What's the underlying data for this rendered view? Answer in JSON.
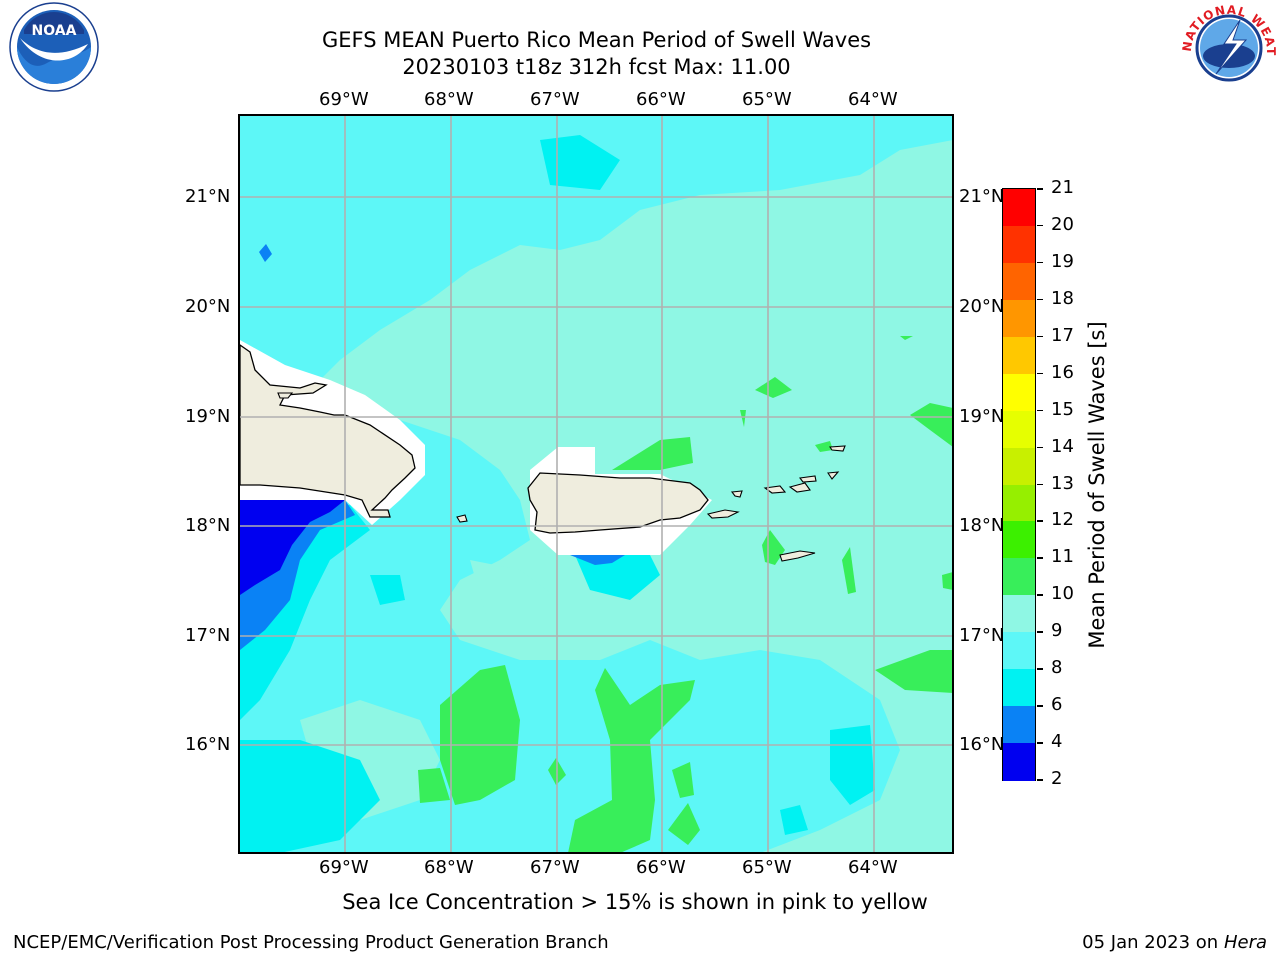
{
  "header": {
    "title_line1": "GEFS MEAN Puerto Rico Mean Period of Swell Waves",
    "title_line2": "20230103 t18z 312h fcst   Max: 11.00"
  },
  "logos": {
    "left": "noaa-logo",
    "right": "nws-logo"
  },
  "map": {
    "lon_labels": [
      "69°W",
      "68°W",
      "67°W",
      "66°W",
      "65°W",
      "64°W"
    ],
    "lat_labels": [
      "21°N",
      "20°N",
      "19°N",
      "18°N",
      "17°N",
      "16°N"
    ],
    "colors": {
      "land": "#efedde",
      "sea_8_9": "#5df7f7",
      "sea_9_10": "#8ff7e4",
      "sea_6_8": "#00f2f2",
      "sea_10_11": "#38ee5a",
      "sea_4_6": "#0a82f5",
      "sea_2_4": "#0000f0",
      "grid": "#b0b0b0"
    }
  },
  "colorbar": {
    "label": "Mean Period of Swell Waves [s]",
    "ticks": [
      "21",
      "20",
      "19",
      "18",
      "17",
      "16",
      "15",
      "14",
      "13",
      "12",
      "11",
      "10",
      "9",
      "8",
      "6",
      "4",
      "2"
    ],
    "colors": [
      "#ff0000",
      "#ff3200",
      "#ff6400",
      "#ff9600",
      "#ffc800",
      "#ffff00",
      "#e6ff00",
      "#c8f000",
      "#96ef00",
      "#3cf000",
      "#38ee5a",
      "#8ff7e4",
      "#5df7f7",
      "#00f2f2",
      "#0a82f5",
      "#0000f0"
    ]
  },
  "footer": {
    "note": "Sea Ice Concentration > 15% is shown in pink to yellow",
    "credit": "NCEP/EMC/Verification Post Processing Product Generation Branch",
    "date": "05 Jan 2023 on ",
    "host": "Hera"
  }
}
